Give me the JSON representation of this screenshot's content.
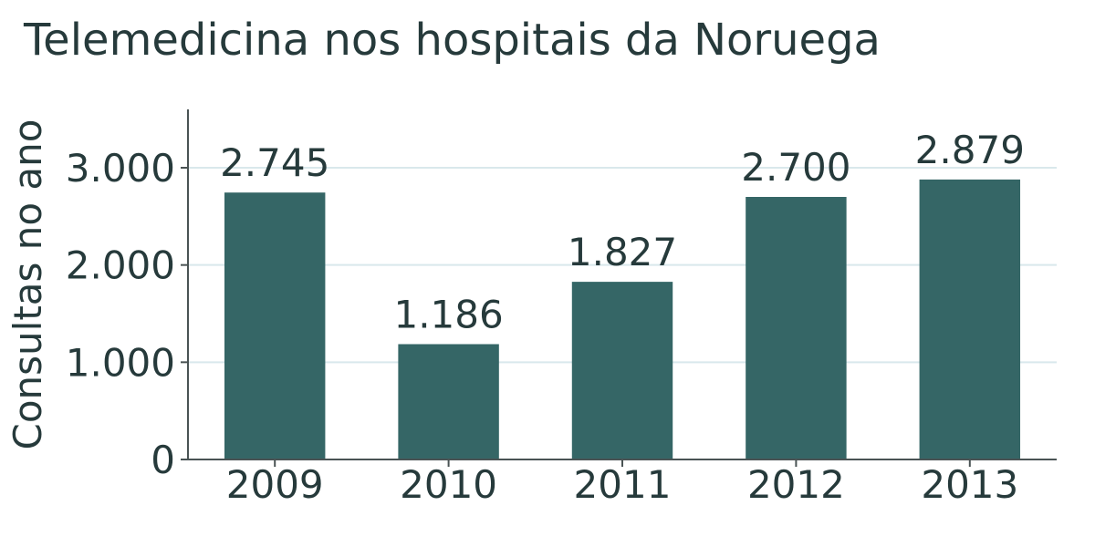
{
  "chart_data": {
    "type": "bar",
    "title": "Telemedicina nos hospitais da Noruega",
    "xlabel": "",
    "ylabel": "Consultas no ano",
    "categories": [
      "2009",
      "2010",
      "2011",
      "2012",
      "2013"
    ],
    "values": [
      2745,
      1186,
      1827,
      2700,
      2879
    ],
    "value_labels": [
      "2.745",
      "1.186",
      "1.827",
      "2.700",
      "2.879"
    ],
    "yticks": [
      0,
      1000,
      2000,
      3000
    ],
    "ytick_labels": [
      "0",
      "1.000",
      "2.000",
      "3.000"
    ],
    "ylim": [
      0,
      3600
    ],
    "grid": true,
    "bar_color": "#356666",
    "text_color": "#263a3b",
    "grid_color": "#d9e8ec"
  }
}
